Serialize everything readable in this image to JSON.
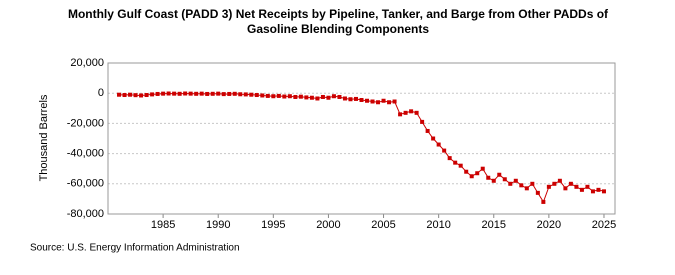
{
  "chart_data": {
    "type": "line",
    "title": [
      "Monthly Gulf Coast (PADD 3) Net Receipts by Pipeline, Tanker, and Barge from Other PADDs of",
      "Gasoline Blending Components"
    ],
    "ylabel": "Thousand Barrels",
    "source": "Source: U.S. Energy Information Administration",
    "xlim": [
      1980,
      2026
    ],
    "xticks": [
      1985,
      1990,
      1995,
      2000,
      2005,
      2010,
      2015,
      2020,
      2025
    ],
    "ylim": [
      -80000,
      20000
    ],
    "yticks": [
      {
        "value": -80000,
        "label": "-80,000"
      },
      {
        "value": -60000,
        "label": "-60,000"
      },
      {
        "value": -40000,
        "label": "-40,000"
      },
      {
        "value": -20000,
        "label": "-20,000"
      },
      0,
      {
        "value": 20000,
        "label": "20,000"
      }
    ],
    "grid": true,
    "series": [
      {
        "color": "#cc0000",
        "x": [
          1981,
          1981.5,
          1982,
          1982.5,
          1983,
          1983.5,
          1984,
          1984.5,
          1985,
          1985.5,
          1986,
          1986.5,
          1987,
          1987.5,
          1988,
          1988.5,
          1989,
          1989.5,
          1990,
          1990.5,
          1991,
          1991.5,
          1992,
          1992.5,
          1993,
          1993.5,
          1994,
          1994.5,
          1995,
          1995.5,
          1996,
          1996.5,
          1997,
          1997.5,
          1998,
          1998.5,
          1999,
          1999.5,
          2000,
          2000.5,
          2001,
          2001.5,
          2002,
          2002.5,
          2003,
          2003.5,
          2004,
          2004.5,
          2005,
          2005.5,
          2006,
          2006.5,
          2007,
          2007.5,
          2008,
          2008.5,
          2009,
          2009.5,
          2010,
          2010.5,
          2011,
          2011.5,
          2012,
          2012.5,
          2013,
          2013.5,
          2014,
          2014.5,
          2015,
          2015.5,
          2016,
          2016.5,
          2017,
          2017.5,
          2018,
          2018.5,
          2019,
          2019.5,
          2020,
          2020.5,
          2021,
          2021.5,
          2022,
          2022.5,
          2023,
          2023.5,
          2024,
          2024.5,
          2025
        ],
        "values": [
          -1000,
          -1200,
          -1000,
          -1300,
          -1500,
          -1200,
          -800,
          -500,
          -300,
          -200,
          -300,
          -400,
          -200,
          -300,
          -400,
          -300,
          -500,
          -400,
          -300,
          -600,
          -500,
          -400,
          -700,
          -800,
          -1000,
          -1200,
          -1500,
          -1800,
          -2000,
          -1800,
          -2200,
          -2000,
          -2500,
          -2300,
          -2800,
          -3000,
          -3500,
          -2500,
          -3000,
          -2000,
          -2500,
          -3500,
          -4000,
          -3800,
          -4500,
          -5000,
          -5500,
          -6000,
          -5000,
          -6000,
          -5500,
          -14000,
          -13000,
          -12000,
          -13000,
          -19000,
          -25000,
          -30000,
          -34000,
          -38000,
          -43000,
          -46000,
          -48000,
          -52000,
          -55000,
          -53000,
          -50000,
          -56000,
          -58000,
          -54000,
          -57000,
          -60000,
          -58000,
          -61000,
          -63000,
          -60000,
          -66000,
          -72000,
          -62000,
          -60000,
          -58000,
          -63000,
          -60000,
          -62000,
          -64000,
          -62000,
          -65000,
          -64000,
          -65000
        ]
      }
    ]
  }
}
